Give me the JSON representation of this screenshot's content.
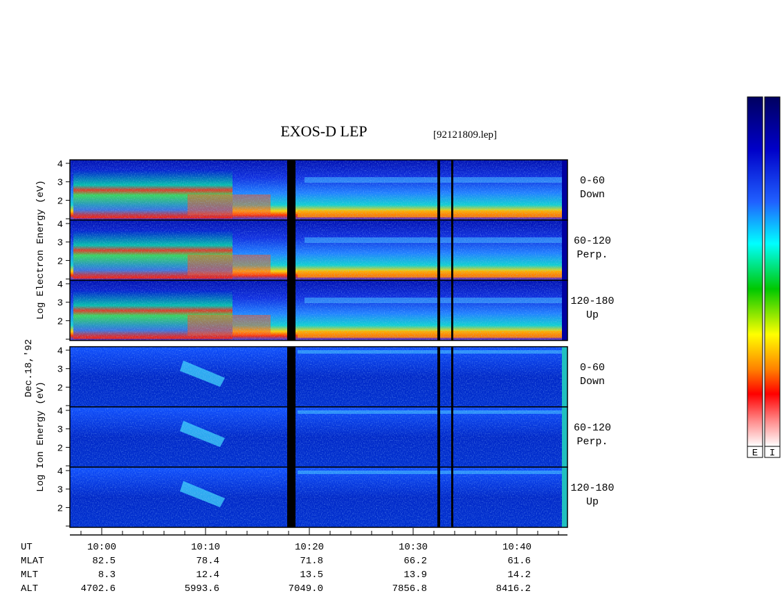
{
  "title": "EXOS-D LEP",
  "file": "[92121809.lep]",
  "date": "Dec.18,'92",
  "groups": [
    {
      "label": "Log Electron Energy (eV)",
      "panels": [
        {
          "angle": "0-60",
          "direction": "Down"
        },
        {
          "angle": "60-120",
          "direction": "Perp."
        },
        {
          "angle": "120-180",
          "direction": "Up"
        }
      ]
    },
    {
      "label": "Log Ion Energy (eV)",
      "panels": [
        {
          "angle": "0-60",
          "direction": "Down"
        },
        {
          "angle": "60-120",
          "direction": "Perp."
        },
        {
          "angle": "120-180",
          "direction": "Up"
        }
      ]
    }
  ],
  "yticks": [
    2,
    3,
    4
  ],
  "axis_table": [
    {
      "label": "UT",
      "values": [
        "10:00",
        "10:10",
        "10:20",
        "10:30",
        "10:40"
      ]
    },
    {
      "label": "MLAT",
      "values": [
        "82.5",
        "78.4",
        "71.8",
        "66.2",
        "61.6"
      ]
    },
    {
      "label": "MLT",
      "values": [
        "8.3",
        "12.4",
        "13.5",
        "13.9",
        "14.2"
      ]
    },
    {
      "label": "ALT",
      "values": [
        "4702.6",
        "5993.6",
        "7049.0",
        "7856.8",
        "8416.2"
      ]
    }
  ],
  "colorbars": [
    "E",
    "I"
  ]
}
